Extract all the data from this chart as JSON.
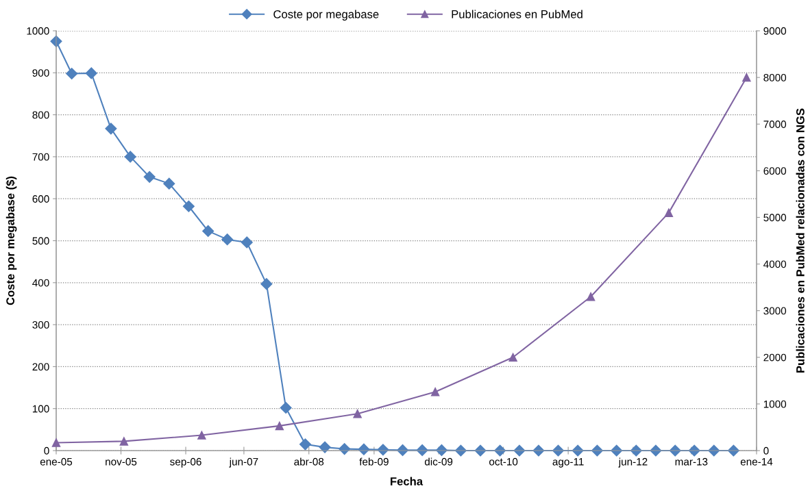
{
  "chart_data": {
    "type": "line",
    "xlabel": "Fecha",
    "ylabel": "Coste por megabase ($)",
    "y2label": "Publicaciones en PubMed relacionadas con NGS",
    "series": [
      {
        "name": "Coste por megabase",
        "color": "#4f81bd",
        "marker": "diamond",
        "x": [
          "2005-01-01",
          "2005-03-15",
          "2005-06-15",
          "2005-09-15",
          "2005-12-15",
          "2006-03-15",
          "2006-06-15",
          "2006-09-15",
          "2006-12-15",
          "2007-03-15",
          "2007-06-15",
          "2007-09-15",
          "2007-12-15",
          "2008-03-15",
          "2008-06-15",
          "2008-09-15",
          "2008-12-15",
          "2009-03-15",
          "2009-06-15",
          "2009-09-15",
          "2009-12-15",
          "2010-03-15",
          "2010-06-15",
          "2010-09-15",
          "2010-12-15",
          "2011-03-15",
          "2011-06-15",
          "2011-09-15",
          "2011-12-15",
          "2012-03-15",
          "2012-06-15",
          "2012-09-15",
          "2012-12-15",
          "2013-03-15",
          "2013-06-15",
          "2013-09-15"
        ],
        "values": [
          975,
          898,
          899,
          767,
          700,
          652,
          636,
          582,
          523,
          503,
          496,
          397,
          102,
          15,
          8,
          4,
          3,
          2,
          1,
          1,
          1,
          0,
          0,
          0,
          0,
          0,
          0,
          0,
          0,
          0,
          0,
          0,
          0,
          0,
          0,
          0
        ]
      },
      {
        "name": "Publicaciones en PubMed",
        "color": "#8064a2",
        "marker": "triangle",
        "axis": "y2",
        "x": [
          "2005-01-01",
          "2005-11-15",
          "2006-11-15",
          "2007-11-15",
          "2008-11-15",
          "2009-11-15",
          "2010-11-15",
          "2011-11-15",
          "2012-11-15",
          "2013-11-15"
        ],
        "values": [
          170,
          200,
          330,
          530,
          790,
          1260,
          2000,
          3300,
          5100,
          8000
        ]
      }
    ],
    "xlim": [
      "2005-01-01",
      "2014-01-01"
    ],
    "xticks": [
      {
        "value": "2005-01-01",
        "label": "ene-05"
      },
      {
        "value": "2005-11-01",
        "label": "nov-05"
      },
      {
        "value": "2006-09-01",
        "label": "sep-06"
      },
      {
        "value": "2007-06-01",
        "label": "jun-07"
      },
      {
        "value": "2008-04-01",
        "label": "abr-08"
      },
      {
        "value": "2009-02-01",
        "label": "feb-09"
      },
      {
        "value": "2009-12-01",
        "label": "dic-09"
      },
      {
        "value": "2010-10-01",
        "label": "oct-10"
      },
      {
        "value": "2011-08-01",
        "label": "ago-11"
      },
      {
        "value": "2012-06-01",
        "label": "jun-12"
      },
      {
        "value": "2013-03-01",
        "label": "mar-13"
      },
      {
        "value": "2014-01-01",
        "label": "ene-14"
      }
    ],
    "ylim": [
      0,
      1000
    ],
    "yticks": [
      0,
      100,
      200,
      300,
      400,
      500,
      600,
      700,
      800,
      900,
      1000
    ],
    "y2lim": [
      0,
      9000
    ],
    "y2ticks": [
      0,
      1000,
      2000,
      3000,
      4000,
      5000,
      6000,
      7000,
      8000,
      9000
    ],
    "grid": "y",
    "legend": "top"
  }
}
